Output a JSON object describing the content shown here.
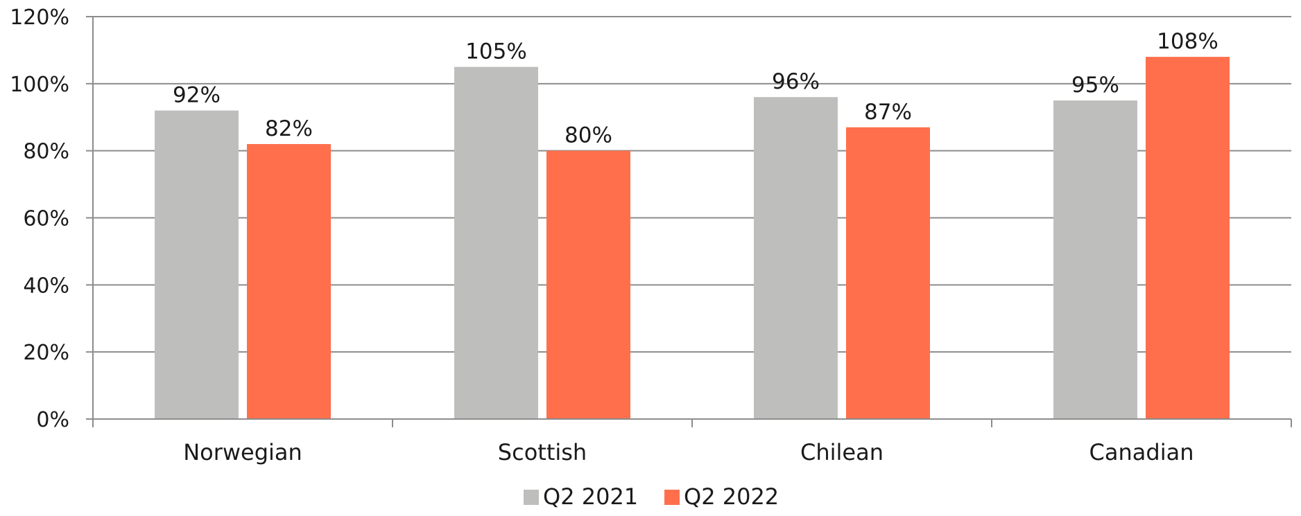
{
  "chart_data": {
    "type": "bar",
    "title": "",
    "xlabel": "",
    "ylabel": "",
    "categories": [
      "Norwegian",
      "Scottish",
      "Chilean",
      "Canadian"
    ],
    "series": [
      {
        "name": "Q2 2021",
        "color": "#bebfbd",
        "values": [
          92,
          105,
          96,
          95
        ],
        "labels": [
          "92%",
          "105%",
          "96%",
          "95%"
        ]
      },
      {
        "name": "Q2 2022",
        "color": "#ff6f4c",
        "values": [
          82,
          80,
          87,
          108
        ],
        "labels": [
          "82%",
          "80%",
          "87%",
          "108%"
        ]
      }
    ],
    "ylim": [
      0,
      120
    ],
    "y_ticks": [
      0,
      20,
      40,
      60,
      80,
      100,
      120
    ],
    "y_tick_labels": [
      "0%",
      "20%",
      "40%",
      "60%",
      "80%",
      "100%",
      "120%"
    ],
    "grid": true,
    "gridline_color": "#8c8c8c",
    "legend_position": "bottom"
  }
}
